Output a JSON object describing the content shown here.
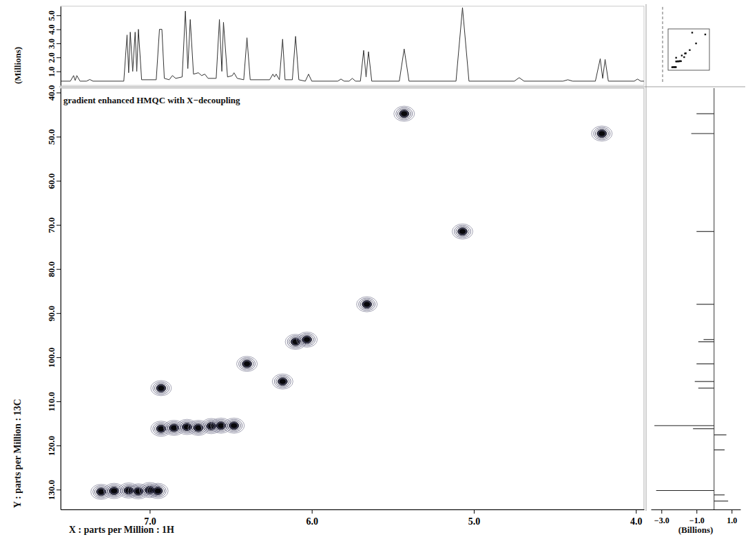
{
  "chart_data": [
    {
      "type": "contour",
      "title": "gradient enhanced HMQC with X−decoupling",
      "x_label": "X : parts per Million : 1H",
      "y_label": "Y : parts per Million : 13C",
      "color": "#15152a",
      "x": [
        7.3,
        7.22,
        7.13,
        7.07,
        7.0,
        6.95,
        6.93,
        6.85,
        6.77,
        6.7,
        6.62,
        6.56,
        6.48,
        6.93,
        6.4,
        6.18,
        6.1,
        6.03,
        5.66,
        5.07,
        5.43,
        4.21
      ],
      "y": [
        130.5,
        130.3,
        130.2,
        130.4,
        130.1,
        130.3,
        116.2,
        116.0,
        115.8,
        116.0,
        115.6,
        115.5,
        115.5,
        107.0,
        101.5,
        105.5,
        96.5,
        96.0,
        88.0,
        71.5,
        44.8,
        49.3
      ],
      "xlim": [
        7.55,
        3.95
      ],
      "xticks": [
        {
          "value": 7,
          "label": "7.0"
        },
        {
          "value": 6,
          "label": "6.0"
        },
        {
          "value": 5,
          "label": "5.0"
        },
        {
          "value": 4,
          "label": "4.0"
        }
      ],
      "ylim": [
        134.5,
        39
      ],
      "yticks": [
        {
          "value": 40,
          "label": "40.0"
        },
        {
          "value": 50,
          "label": "50.0"
        },
        {
          "value": 60,
          "label": "60.0"
        },
        {
          "value": 70,
          "label": "70.0"
        },
        {
          "value": 80,
          "label": "80.0"
        },
        {
          "value": 90,
          "label": "90.0"
        },
        {
          "value": 100,
          "label": "100.0"
        },
        {
          "value": 110,
          "label": "110.0"
        },
        {
          "value": 120,
          "label": "120.0"
        },
        {
          "value": 130,
          "label": "130.0"
        }
      ]
    },
    {
      "type": "line",
      "y_label": "(Millions)",
      "color": "#333333",
      "x": [
        7.55,
        7.49,
        7.47,
        7.46,
        7.45,
        7.43,
        7.39,
        7.37,
        7.35,
        7.16,
        7.14,
        7.13,
        7.12,
        7.105,
        7.09,
        7.08,
        7.07,
        7.05,
        6.96,
        6.94,
        6.925,
        6.91,
        6.88,
        6.86,
        6.84,
        6.8,
        6.78,
        6.765,
        6.75,
        6.73,
        6.7,
        6.68,
        6.66,
        6.64,
        6.59,
        6.57,
        6.555,
        6.545,
        6.52,
        6.49,
        6.48,
        6.46,
        6.42,
        6.4,
        6.38,
        6.26,
        6.24,
        6.23,
        6.22,
        6.2,
        6.18,
        6.165,
        6.12,
        6.1,
        6.08,
        6.04,
        6.02,
        6.0,
        5.84,
        5.82,
        5.8,
        5.77,
        5.75,
        5.73,
        5.7,
        5.68,
        5.665,
        5.65,
        5.63,
        5.46,
        5.43,
        5.4,
        5.11,
        5.07,
        5.03,
        4.75,
        4.72,
        4.69,
        4.45,
        4.42,
        4.39,
        4.25,
        4.22,
        4.205,
        4.19,
        4.17,
        4.01,
        3.99,
        3.97,
        3.95
      ],
      "values": [
        0.3,
        0.3,
        0.7,
        0.35,
        0.7,
        0.3,
        0.3,
        0.42,
        0.3,
        0.3,
        3.6,
        0.9,
        3.8,
        1.0,
        3.8,
        1.0,
        4.0,
        0.4,
        0.4,
        4.0,
        4.0,
        0.5,
        0.4,
        0.7,
        0.5,
        0.6,
        5.3,
        1.2,
        4.7,
        0.8,
        0.9,
        0.7,
        0.8,
        0.5,
        0.5,
        4.7,
        1.0,
        4.5,
        0.6,
        0.7,
        0.9,
        0.5,
        0.4,
        3.4,
        0.4,
        0.4,
        0.8,
        0.6,
        0.8,
        0.4,
        3.3,
        0.4,
        0.4,
        3.5,
        0.4,
        0.3,
        0.8,
        0.3,
        0.3,
        0.45,
        0.3,
        0.3,
        0.5,
        0.3,
        0.3,
        2.5,
        0.6,
        2.4,
        0.3,
        0.3,
        2.6,
        0.3,
        0.3,
        5.55,
        0.3,
        0.3,
        0.55,
        0.3,
        0.3,
        0.4,
        0.3,
        0.3,
        1.9,
        0.5,
        1.85,
        0.3,
        0.3,
        0.45,
        0.3,
        0.3
      ],
      "xlim": [
        7.55,
        3.95
      ],
      "ylim": [
        0,
        5.65
      ],
      "yticks": [
        {
          "value": 1,
          "label": "1.0"
        },
        {
          "value": 2,
          "label": "2.0"
        },
        {
          "value": 3,
          "label": "3.0"
        },
        {
          "value": 4,
          "label": "4.0"
        },
        {
          "value": 5,
          "label": "5.0"
        }
      ],
      "tick_labels": "y"
    },
    {
      "type": "bar",
      "orientation": "horizontal",
      "x_label": "(Billions)",
      "color": "#222222",
      "y": [
        44.8,
        49.3,
        71.5,
        88.0,
        96.0,
        96.5,
        101.5,
        105.5,
        107.0,
        115.5,
        116.2,
        117.6,
        121.0,
        130.2,
        131.2,
        132.6
      ],
      "values": [
        -1.0,
        -1.3,
        -1.0,
        -1.0,
        -0.6,
        -0.9,
        -1.0,
        -1.1,
        -0.9,
        -3.4,
        -1.2,
        0.7,
        0.6,
        -3.3,
        0.6,
        0.8
      ],
      "xlim": [
        -3.6,
        1.5
      ],
      "xticks": [
        {
          "value": -3,
          "label": "−3.0"
        },
        {
          "value": -1,
          "label": "−1.0"
        },
        {
          "value": 1,
          "label": "1.0"
        }
      ],
      "ylim": [
        134.5,
        39
      ],
      "tick_labels": "x"
    }
  ]
}
